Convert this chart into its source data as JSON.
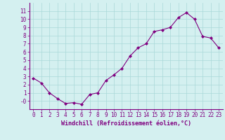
{
  "x": [
    0,
    1,
    2,
    3,
    4,
    5,
    6,
    7,
    8,
    9,
    10,
    11,
    12,
    13,
    14,
    15,
    16,
    17,
    18,
    19,
    20,
    21,
    22,
    23
  ],
  "y": [
    2.8,
    2.2,
    1.0,
    0.3,
    -0.3,
    -0.2,
    -0.4,
    0.8,
    1.0,
    2.5,
    3.2,
    4.0,
    5.5,
    6.5,
    7.0,
    8.5,
    8.7,
    9.0,
    10.2,
    10.8,
    10.0,
    7.9,
    7.7,
    6.5
  ],
  "line_color": "#800080",
  "marker": "D",
  "marker_size": 2.0,
  "bg_color": "#d4f0f0",
  "grid_color": "#aad8d8",
  "xlabel": "Windchill (Refroidissement éolien,°C)",
  "ylim": [
    -1,
    12
  ],
  "xlim": [
    -0.5,
    23.5
  ],
  "ytick_vals": [
    0,
    1,
    2,
    3,
    4,
    5,
    6,
    7,
    8,
    9,
    10,
    11
  ],
  "ytick_labels": [
    "-0",
    "1",
    "2",
    "3",
    "4",
    "5",
    "6",
    "7",
    "8",
    "9",
    "10",
    "11"
  ],
  "xticks": [
    0,
    1,
    2,
    3,
    4,
    5,
    6,
    7,
    8,
    9,
    10,
    11,
    12,
    13,
    14,
    15,
    16,
    17,
    18,
    19,
    20,
    21,
    22,
    23
  ],
  "xtick_labels": [
    "0",
    "1",
    "2",
    "3",
    "4",
    "5",
    "6",
    "7",
    "8",
    "9",
    "10",
    "11",
    "12",
    "13",
    "14",
    "15",
    "16",
    "17",
    "18",
    "19",
    "20",
    "21",
    "22",
    "23"
  ],
  "text_color": "#800080",
  "font_size": 5.5,
  "xlabel_fontsize": 6.0
}
